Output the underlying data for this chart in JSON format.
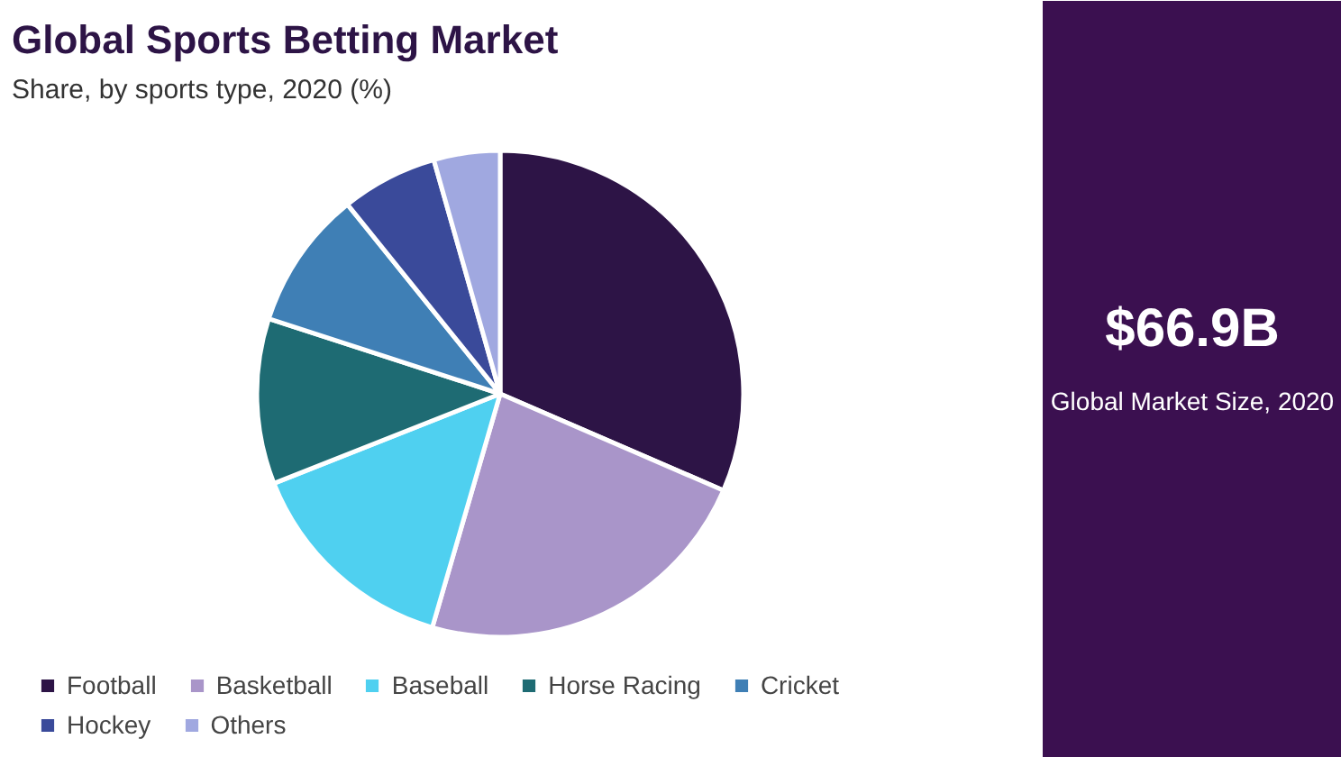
{
  "chart_data": {
    "type": "pie",
    "title": "Global Sports Betting Market",
    "subtitle": "Share, by sports type, 2020 (%)",
    "categories": [
      "Football",
      "Basketball",
      "Baseball",
      "Horse Racing",
      "Cricket",
      "Hockey",
      "Others"
    ],
    "values": [
      31.5,
      23,
      14.5,
      11,
      9.2,
      6.4,
      4.4
    ],
    "colors": [
      "#2d1446",
      "#a995c9",
      "#4fd0f0",
      "#1e6b73",
      "#3f7fb5",
      "#3a4a9a",
      "#a0a8e0"
    ],
    "legend": "bottom",
    "annotations": [
      "$66.9B",
      "Global Market Size, 2020"
    ]
  }
}
